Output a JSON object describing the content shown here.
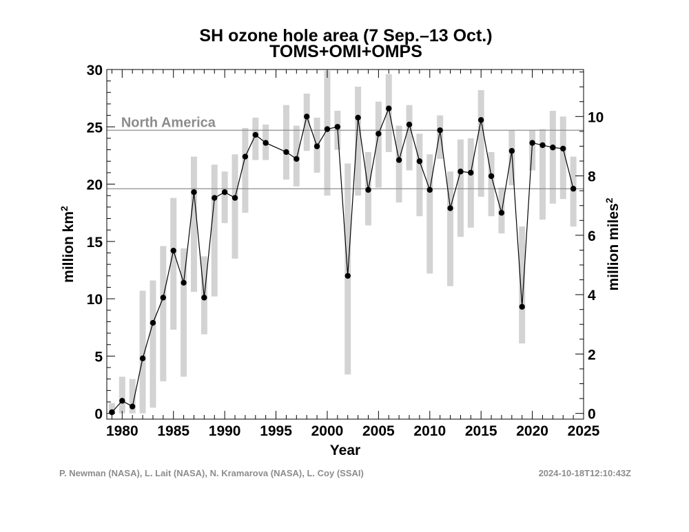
{
  "chart_data": {
    "type": "line",
    "title": "SH ozone hole area (7 Sep.–13 Oct.)",
    "subtitle": "TOMS+OMI+OMPS",
    "xlabel": "Year",
    "ylabel": "million km",
    "ylabel_superscript": "2",
    "y2label": "million miles",
    "y2label_superscript": "2",
    "xlim": [
      1978.5,
      2025
    ],
    "ylim": [
      -0.5,
      30
    ],
    "y2lim_note": "secondary axis in million square miles (1 million mi² = 2.58999 million km²)",
    "x_ticks": [
      "1980",
      "1985",
      "1990",
      "1995",
      "2000",
      "2005",
      "2010",
      "2015",
      "2020",
      "2025"
    ],
    "x_tick_values": [
      1980,
      1985,
      1990,
      1995,
      2000,
      2005,
      2010,
      2015,
      2020,
      2025
    ],
    "y_ticks": [
      "0",
      "5",
      "10",
      "15",
      "20",
      "25",
      "30"
    ],
    "y_tick_values": [
      0,
      5,
      10,
      15,
      20,
      25,
      30
    ],
    "y2_ticks": [
      "0",
      "2",
      "4",
      "6",
      "8",
      "10"
    ],
    "y2_tick_values": [
      0,
      2,
      4,
      6,
      8,
      10
    ],
    "grid": false,
    "reference_lines": [
      {
        "label": "North America",
        "value": 24.7
      },
      {
        "label": "",
        "value": 19.6
      }
    ],
    "series": [
      {
        "x": [
          1979,
          1980,
          1981,
          1982,
          1983,
          1984,
          1985,
          1986,
          1987,
          1988,
          1989,
          1990,
          1991,
          1992,
          1993,
          1994,
          1996,
          1997,
          1998,
          1999,
          2000,
          2001,
          2002,
          2003,
          2004,
          2005,
          2006,
          2007,
          2008,
          2009,
          2010,
          2011,
          2012,
          2013,
          2014,
          2015,
          2016,
          2017,
          2018,
          2019,
          2020,
          2021,
          2022,
          2023,
          2024
        ],
        "values": [
          0.1,
          1.1,
          0.6,
          4.8,
          7.9,
          10.1,
          14.2,
          11.4,
          19.3,
          10.1,
          18.8,
          19.3,
          18.8,
          22.4,
          24.3,
          23.6,
          22.8,
          22.2,
          25.9,
          23.3,
          24.8,
          25.0,
          12.0,
          25.8,
          19.5,
          24.4,
          26.6,
          22.1,
          25.2,
          22.0,
          19.5,
          24.7,
          17.9,
          21.1,
          21.0,
          25.6,
          20.7,
          17.5,
          22.9,
          9.3,
          23.6,
          23.4,
          23.2,
          23.1,
          19.6
        ]
      },
      {
        "x": [
          1979,
          1980,
          1981,
          1982,
          1983,
          1984,
          1985,
          1986,
          1987,
          1988,
          1989,
          1990,
          1991,
          1992,
          1993,
          1994,
          1996,
          1997,
          1998,
          1999,
          2000,
          2001,
          2002,
          2003,
          2004,
          2005,
          2006,
          2007,
          2008,
          2009,
          2010,
          2011,
          2012,
          2013,
          2014,
          2015,
          2016,
          2017,
          2018,
          2019,
          2020,
          2021,
          2022,
          2023,
          2024
        ],
        "range_low": [
          0,
          0,
          0,
          0,
          0.5,
          2.8,
          7.3,
          3.2,
          10.6,
          6.9,
          10.2,
          16.6,
          13.5,
          17.5,
          22.1,
          22.1,
          20.4,
          19.8,
          22.9,
          21.0,
          19.0,
          23.0,
          3.4,
          19.0,
          16.4,
          19.7,
          22.8,
          18.4,
          21.2,
          17.2,
          12.2,
          22.2,
          11.1,
          15.4,
          16.2,
          18.9,
          17.2,
          15.7,
          19.9,
          6.1,
          21.2,
          16.9,
          18.3,
          18.7,
          16.3
        ],
        "range_high": [
          0.9,
          3.2,
          3.0,
          10.7,
          11.6,
          14.6,
          18.8,
          14.4,
          22.4,
          13.7,
          21.7,
          21.1,
          22.6,
          24.9,
          25.8,
          25.2,
          26.9,
          25.1,
          27.9,
          25.8,
          29.9,
          26.4,
          21.8,
          28.5,
          22.8,
          27.2,
          29.6,
          25.1,
          26.9,
          24.4,
          22.6,
          26.0,
          21.1,
          23.9,
          24.0,
          28.2,
          22.8,
          19.7,
          24.7,
          16.3,
          24.7,
          24.8,
          26.4,
          25.9,
          22.4
        ]
      }
    ]
  },
  "footer": {
    "credits": "P. Newman (NASA), L. Lait (NASA), N. Kramarova (NASA), L. Coy (SSAI)",
    "timestamp": "2024-10-18T12:10:43Z"
  },
  "colors": {
    "range_bar": "#d3d3d3",
    "reference_line": "#8c8c8c",
    "series_line": "#000000",
    "footer_text": "#8c8c8c"
  }
}
